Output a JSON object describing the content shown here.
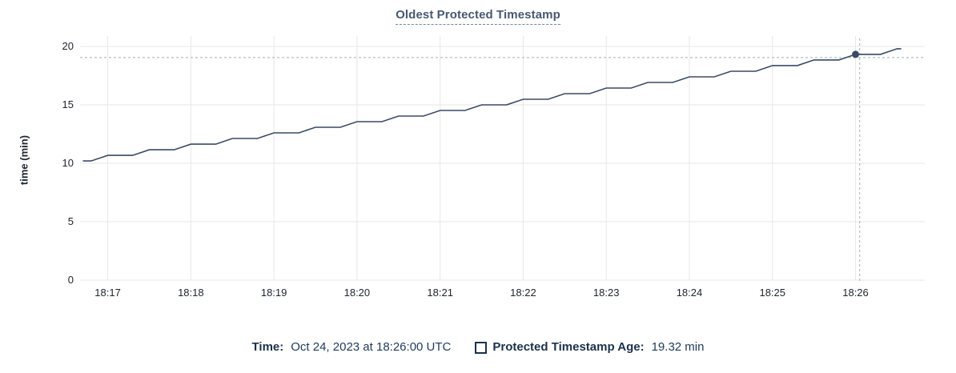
{
  "title": "Oldest Protected Timestamp",
  "colors": {
    "series": "#394a67",
    "grid": "#e7e7e7",
    "crosshair": "#9fb1bb",
    "title": "#475872",
    "axis_text": "#20262e",
    "legend_text": "#1b3150"
  },
  "chart_data": {
    "type": "line",
    "title": "Oldest Protected Timestamp",
    "xlabel": "",
    "ylabel": "time (min)",
    "ylim": [
      0,
      21.2
    ],
    "x_domain": [
      "18:16:40",
      "18:26:50"
    ],
    "y_ticks": [
      0,
      5,
      10,
      15,
      20
    ],
    "x_ticks": [
      "18:17",
      "18:18",
      "18:19",
      "18:20",
      "18:21",
      "18:22",
      "18:23",
      "18:24",
      "18:25",
      "18:26"
    ],
    "grid": true,
    "legend_position": "bottom",
    "series": [
      {
        "name": "Protected Timestamp Age",
        "color": "#394a67",
        "points": [
          [
            "18:16:42",
            10.2
          ],
          [
            "18:16:48",
            10.2
          ],
          [
            "18:17:00",
            10.68
          ],
          [
            "18:17:18",
            10.68
          ],
          [
            "18:17:30",
            11.16
          ],
          [
            "18:17:48",
            11.16
          ],
          [
            "18:18:00",
            11.64
          ],
          [
            "18:18:18",
            11.64
          ],
          [
            "18:18:30",
            12.12
          ],
          [
            "18:18:48",
            12.12
          ],
          [
            "18:19:00",
            12.6
          ],
          [
            "18:19:18",
            12.6
          ],
          [
            "18:19:30",
            13.08
          ],
          [
            "18:19:48",
            13.08
          ],
          [
            "18:20:00",
            13.56
          ],
          [
            "18:20:18",
            13.56
          ],
          [
            "18:20:30",
            14.04
          ],
          [
            "18:20:48",
            14.04
          ],
          [
            "18:21:00",
            14.52
          ],
          [
            "18:21:18",
            14.52
          ],
          [
            "18:21:30",
            15.0
          ],
          [
            "18:21:48",
            15.0
          ],
          [
            "18:22:00",
            15.48
          ],
          [
            "18:22:18",
            15.48
          ],
          [
            "18:22:30",
            15.96
          ],
          [
            "18:22:48",
            15.96
          ],
          [
            "18:23:00",
            16.44
          ],
          [
            "18:23:18",
            16.44
          ],
          [
            "18:23:30",
            16.92
          ],
          [
            "18:23:48",
            16.92
          ],
          [
            "18:24:00",
            17.4
          ],
          [
            "18:24:18",
            17.4
          ],
          [
            "18:24:30",
            17.88
          ],
          [
            "18:24:48",
            17.88
          ],
          [
            "18:25:00",
            18.36
          ],
          [
            "18:25:18",
            18.36
          ],
          [
            "18:25:30",
            18.84
          ],
          [
            "18:25:48",
            18.84
          ],
          [
            "18:26:00",
            19.32
          ],
          [
            "18:26:18",
            19.32
          ],
          [
            "18:26:30",
            19.8
          ],
          [
            "18:26:33",
            19.8
          ]
        ]
      }
    ],
    "highlight_point": {
      "x": "18:26:00",
      "y": 19.32
    },
    "crosshair": {
      "x": "18:26:03",
      "y": 19.05
    }
  },
  "tooltip": {
    "time_label": "Time:",
    "time_value": "Oct 24, 2023 at 18:26:00 UTC",
    "age_label": "Protected Timestamp Age:",
    "age_value": "19.32 min"
  }
}
